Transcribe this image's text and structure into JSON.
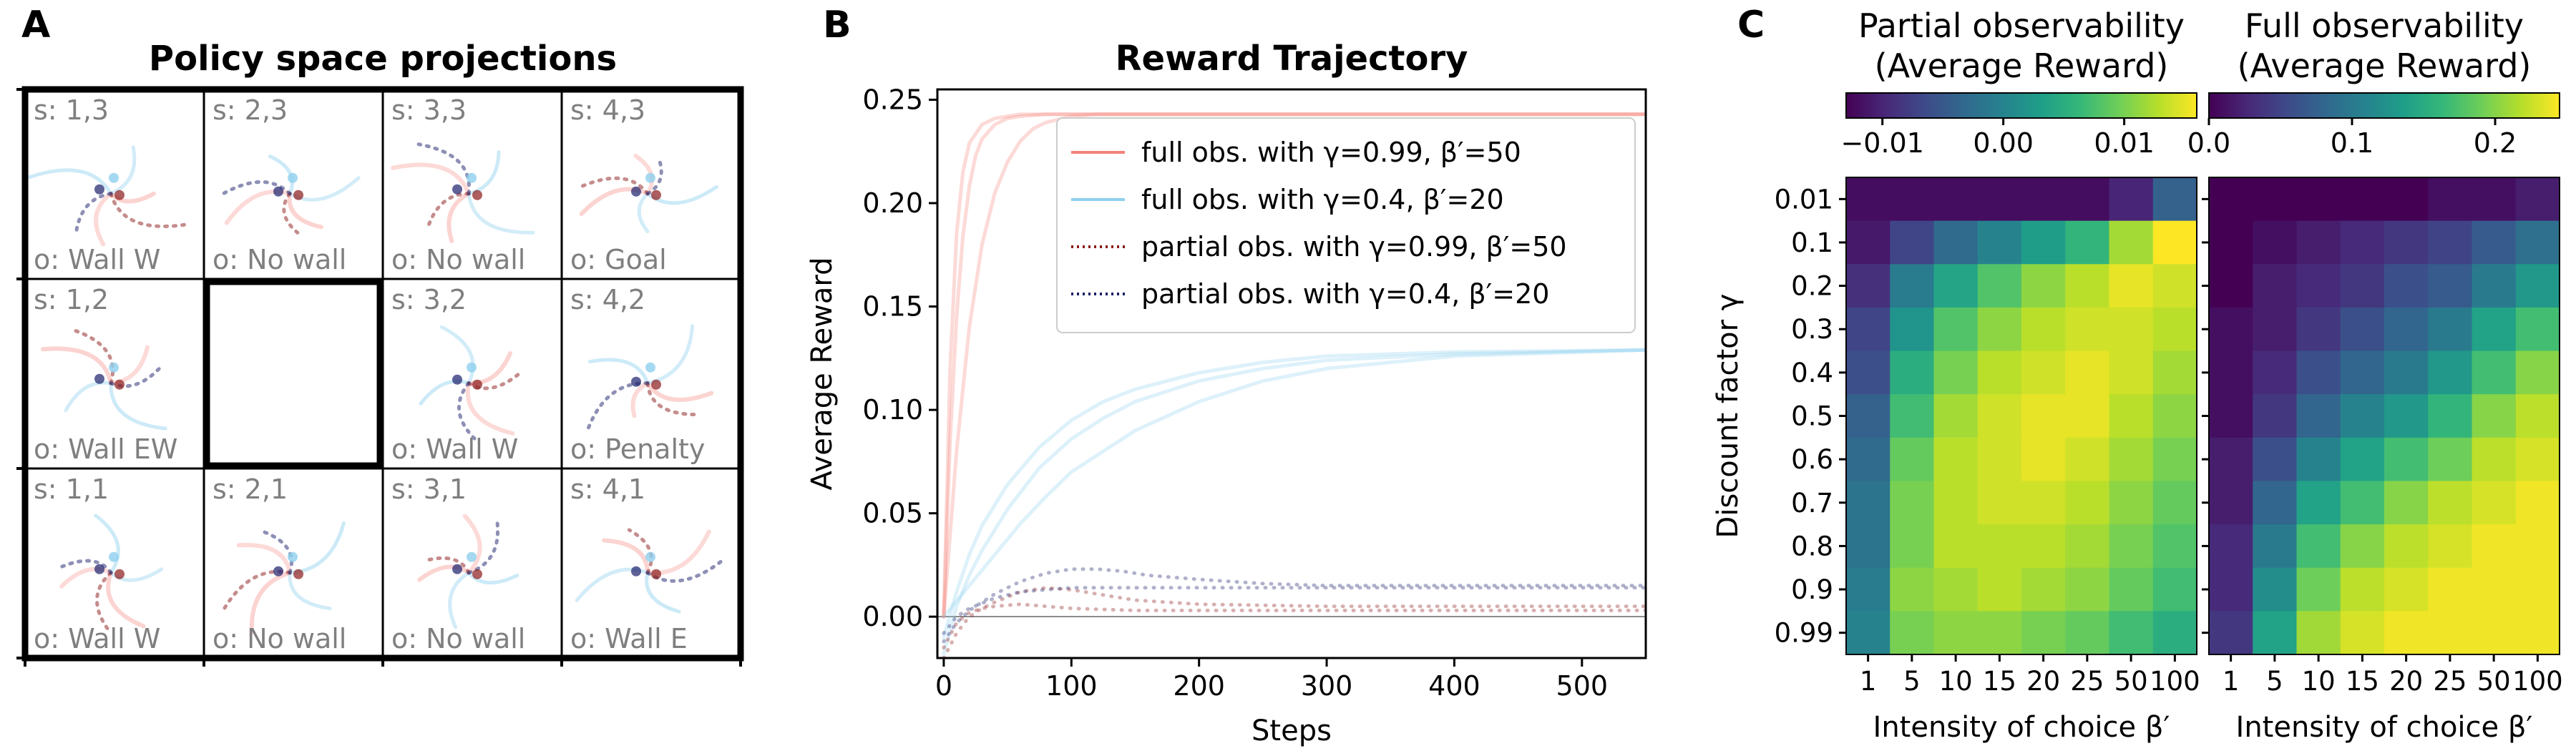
{
  "panel_letters": [
    "A",
    "B",
    "C"
  ],
  "colors": {
    "full_obs_high": "#f4837a",
    "full_obs_low": "#8fd0ee",
    "partial_obs_high": "#8b1a1a",
    "partial_obs_low": "#1b1f6b"
  },
  "chart_data": [
    {
      "id": "A",
      "type": "other",
      "title": "Policy space projections",
      "cells": [
        {
          "row": 0,
          "col": 0,
          "state": "s: 1,3",
          "obs": "o: Wall W"
        },
        {
          "row": 0,
          "col": 1,
          "state": "s: 2,3",
          "obs": "o: No  wall"
        },
        {
          "row": 0,
          "col": 2,
          "state": "s: 3,3",
          "obs": "o: No  wall"
        },
        {
          "row": 0,
          "col": 3,
          "state": "s: 4,3",
          "obs": "o: Goal"
        },
        {
          "row": 1,
          "col": 0,
          "state": "s: 1,2",
          "obs": "o: Wall EW"
        },
        {
          "row": 1,
          "col": 1,
          "state": "",
          "obs": "",
          "blocked": true
        },
        {
          "row": 1,
          "col": 2,
          "state": "s: 3,2",
          "obs": "o: Wall W"
        },
        {
          "row": 1,
          "col": 3,
          "state": "s: 4,2",
          "obs": "o: Penalty"
        },
        {
          "row": 2,
          "col": 0,
          "state": "s: 1,1",
          "obs": "o: Wall W"
        },
        {
          "row": 2,
          "col": 1,
          "state": "s: 2,1",
          "obs": "o: No  wall"
        },
        {
          "row": 2,
          "col": 2,
          "state": "s: 3,1",
          "obs": "o: No  wall"
        },
        {
          "row": 2,
          "col": 3,
          "state": "s: 4,1",
          "obs": "o: Wall E"
        }
      ]
    },
    {
      "id": "B",
      "type": "line",
      "title": "Reward Trajectory",
      "xlabel": "Steps",
      "ylabel": "Average Reward",
      "xlim": [
        -5,
        550
      ],
      "ylim": [
        -0.02,
        0.255
      ],
      "xticks": [
        0,
        100,
        200,
        300,
        400,
        500
      ],
      "yticks": [
        0.0,
        0.05,
        0.1,
        0.15,
        0.2,
        0.25
      ],
      "ytick_labels": [
        "0.00",
        "0.05",
        "0.10",
        "0.15",
        "0.20",
        "0.25"
      ],
      "legend_position": "top-right",
      "legend": [
        {
          "label": "full obs. with γ=0.99, β′=50",
          "color": "#f4837a",
          "style": "solid"
        },
        {
          "label": "full obs. with γ=0.4, β′=20",
          "color": "#8fd0ee",
          "style": "solid"
        },
        {
          "label": "partial obs. with γ=0.99, β′=50",
          "color": "#8b1a1a",
          "style": "dotted"
        },
        {
          "label": "partial obs. with γ=0.4, β′=20",
          "color": "#1b1f6b",
          "style": "dotted"
        }
      ],
      "series": [
        {
          "group": 0,
          "color": "#f4837a",
          "style": "solid",
          "x": [
            0,
            5,
            10,
            15,
            20,
            25,
            30,
            40,
            50,
            60,
            80,
            100,
            150,
            200,
            300,
            400,
            550
          ],
          "y": [
            0,
            0.085,
            0.145,
            0.184,
            0.208,
            0.223,
            0.231,
            0.238,
            0.241,
            0.242,
            0.243,
            0.243,
            0.243,
            0.243,
            0.243,
            0.243,
            0.243
          ]
        },
        {
          "group": 0,
          "color": "#f4837a",
          "style": "solid",
          "x": [
            0,
            10,
            20,
            30,
            40,
            50,
            60,
            70,
            80,
            100,
            120,
            150,
            200,
            300,
            550
          ],
          "y": [
            0,
            0.08,
            0.14,
            0.18,
            0.205,
            0.22,
            0.23,
            0.236,
            0.239,
            0.242,
            0.243,
            0.243,
            0.243,
            0.243,
            0.243
          ]
        },
        {
          "group": 0,
          "color": "#f4837a",
          "style": "solid",
          "x": [
            0,
            5,
            10,
            15,
            20,
            30,
            40,
            60,
            80,
            100,
            550
          ],
          "y": [
            0,
            0.12,
            0.185,
            0.215,
            0.229,
            0.238,
            0.241,
            0.243,
            0.243,
            0.243,
            0.243
          ]
        },
        {
          "group": 1,
          "color": "#8fd0ee",
          "style": "solid",
          "x": [
            0,
            10,
            20,
            30,
            50,
            75,
            100,
            125,
            150,
            200,
            250,
            300,
            400,
            550
          ],
          "y": [
            -0.018,
            0.005,
            0.02,
            0.032,
            0.052,
            0.072,
            0.086,
            0.096,
            0.104,
            0.114,
            0.12,
            0.124,
            0.127,
            0.129
          ]
        },
        {
          "group": 1,
          "color": "#8fd0ee",
          "style": "solid",
          "x": [
            0,
            10,
            20,
            30,
            50,
            75,
            100,
            125,
            150,
            200,
            250,
            300,
            400,
            550
          ],
          "y": [
            -0.01,
            0.012,
            0.03,
            0.044,
            0.064,
            0.082,
            0.095,
            0.104,
            0.11,
            0.118,
            0.123,
            0.126,
            0.128,
            0.129
          ]
        },
        {
          "group": 1,
          "color": "#8fd0ee",
          "style": "solid",
          "x": [
            0,
            20,
            40,
            60,
            80,
            100,
            150,
            200,
            250,
            300,
            400,
            550
          ],
          "y": [
            0,
            0.015,
            0.03,
            0.045,
            0.058,
            0.07,
            0.09,
            0.104,
            0.114,
            0.12,
            0.126,
            0.129
          ]
        },
        {
          "group": 2,
          "color": "#8b1a1a",
          "style": "dotted",
          "x": [
            0,
            10,
            20,
            30,
            40,
            60,
            80,
            100,
            120,
            150,
            200,
            300,
            400,
            550
          ],
          "y": [
            -0.02,
            -0.008,
            0.0,
            0.004,
            0.007,
            0.012,
            0.014,
            0.013,
            0.011,
            0.008,
            0.006,
            0.005,
            0.005,
            0.005
          ]
        },
        {
          "group": 2,
          "color": "#8b1a1a",
          "style": "dotted",
          "x": [
            0,
            10,
            20,
            30,
            40,
            60,
            80,
            100,
            150,
            200,
            300,
            550
          ],
          "y": [
            -0.015,
            -0.003,
            0.002,
            0.004,
            0.005,
            0.006,
            0.005,
            0.004,
            0.003,
            0.003,
            0.003,
            0.003
          ]
        },
        {
          "group": 3,
          "color": "#1b1f6b",
          "style": "dotted",
          "x": [
            0,
            10,
            20,
            40,
            60,
            80,
            100,
            120,
            140,
            160,
            200,
            250,
            300,
            400,
            550
          ],
          "y": [
            -0.012,
            -0.003,
            0.003,
            0.011,
            0.017,
            0.021,
            0.023,
            0.023,
            0.022,
            0.02,
            0.018,
            0.016,
            0.015,
            0.015,
            0.015
          ]
        },
        {
          "group": 3,
          "color": "#1b1f6b",
          "style": "dotted",
          "x": [
            0,
            10,
            20,
            40,
            60,
            80,
            100,
            130,
            160,
            200,
            250,
            300,
            400,
            550
          ],
          "y": [
            -0.008,
            0.0,
            0.004,
            0.009,
            0.012,
            0.013,
            0.014,
            0.014,
            0.014,
            0.014,
            0.014,
            0.014,
            0.014,
            0.014
          ]
        }
      ]
    },
    {
      "id": "C1",
      "type": "heatmap",
      "title_lines": [
        "Partial observability",
        "(Average Reward)"
      ],
      "xlabel": "Intensity of choice β′",
      "ylabel": "Discount factor γ",
      "x_categories": [
        "1",
        "5",
        "10",
        "15",
        "20",
        "25",
        "50",
        "100"
      ],
      "y_categories": [
        "0.01",
        "0.1",
        "0.2",
        "0.3",
        "0.4",
        "0.5",
        "0.6",
        "0.7",
        "0.8",
        "0.9",
        "0.99"
      ],
      "colorbar_range": [
        -0.013,
        0.016
      ],
      "colorbar_ticks": [
        -0.01,
        0.0,
        0.01
      ],
      "colorbar_tick_labels": [
        "−0.01",
        "0.00",
        "0.01"
      ],
      "values": [
        [
          -0.012,
          -0.012,
          -0.012,
          -0.012,
          -0.012,
          -0.012,
          -0.01,
          -0.004
        ],
        [
          -0.011,
          -0.007,
          -0.003,
          0.0,
          0.003,
          0.006,
          0.012,
          0.016
        ],
        [
          -0.009,
          -0.001,
          0.004,
          0.008,
          0.011,
          0.013,
          0.015,
          0.014
        ],
        [
          -0.007,
          0.002,
          0.008,
          0.011,
          0.013,
          0.014,
          0.014,
          0.013
        ],
        [
          -0.006,
          0.005,
          0.01,
          0.013,
          0.014,
          0.015,
          0.014,
          0.012
        ],
        [
          -0.004,
          0.007,
          0.012,
          0.014,
          0.015,
          0.015,
          0.013,
          0.011
        ],
        [
          -0.003,
          0.009,
          0.013,
          0.014,
          0.015,
          0.014,
          0.012,
          0.01
        ],
        [
          -0.002,
          0.01,
          0.013,
          0.014,
          0.014,
          0.013,
          0.011,
          0.009
        ],
        [
          -0.002,
          0.01,
          0.013,
          0.013,
          0.013,
          0.012,
          0.01,
          0.008
        ],
        [
          -0.001,
          0.011,
          0.012,
          0.013,
          0.012,
          0.011,
          0.009,
          0.007
        ],
        [
          0.0,
          0.01,
          0.011,
          0.011,
          0.01,
          0.009,
          0.007,
          0.005
        ]
      ]
    },
    {
      "id": "C2",
      "type": "heatmap",
      "title_lines": [
        "Full observability",
        "(Average Reward)"
      ],
      "xlabel": "Intensity of choice β′",
      "ylabel": "",
      "x_categories": [
        "1",
        "5",
        "10",
        "15",
        "20",
        "25",
        "50",
        "100"
      ],
      "y_categories": [
        "0.01",
        "0.1",
        "0.2",
        "0.3",
        "0.4",
        "0.5",
        "0.6",
        "0.7",
        "0.8",
        "0.9",
        "0.99"
      ],
      "colorbar_range": [
        0.0,
        0.245
      ],
      "colorbar_ticks": [
        0.0,
        0.1,
        0.2
      ],
      "colorbar_tick_labels": [
        "0.0",
        "0.1",
        "0.2"
      ],
      "values": [
        [
          0.0,
          0.0,
          0.0,
          0.0,
          0.0,
          0.01,
          0.01,
          0.02
        ],
        [
          0.0,
          0.01,
          0.02,
          0.03,
          0.04,
          0.05,
          0.07,
          0.09
        ],
        [
          0.0,
          0.02,
          0.03,
          0.04,
          0.06,
          0.07,
          0.1,
          0.13
        ],
        [
          0.01,
          0.02,
          0.04,
          0.06,
          0.08,
          0.1,
          0.14,
          0.17
        ],
        [
          0.01,
          0.03,
          0.06,
          0.08,
          0.1,
          0.13,
          0.17,
          0.2
        ],
        [
          0.01,
          0.04,
          0.08,
          0.11,
          0.13,
          0.16,
          0.2,
          0.22
        ],
        [
          0.02,
          0.06,
          0.11,
          0.14,
          0.17,
          0.19,
          0.22,
          0.23
        ],
        [
          0.02,
          0.08,
          0.14,
          0.17,
          0.2,
          0.22,
          0.23,
          0.24
        ],
        [
          0.03,
          0.1,
          0.17,
          0.2,
          0.22,
          0.23,
          0.24,
          0.24
        ],
        [
          0.03,
          0.12,
          0.19,
          0.22,
          0.23,
          0.24,
          0.24,
          0.24
        ],
        [
          0.04,
          0.14,
          0.21,
          0.23,
          0.24,
          0.24,
          0.24,
          0.24
        ]
      ]
    }
  ]
}
